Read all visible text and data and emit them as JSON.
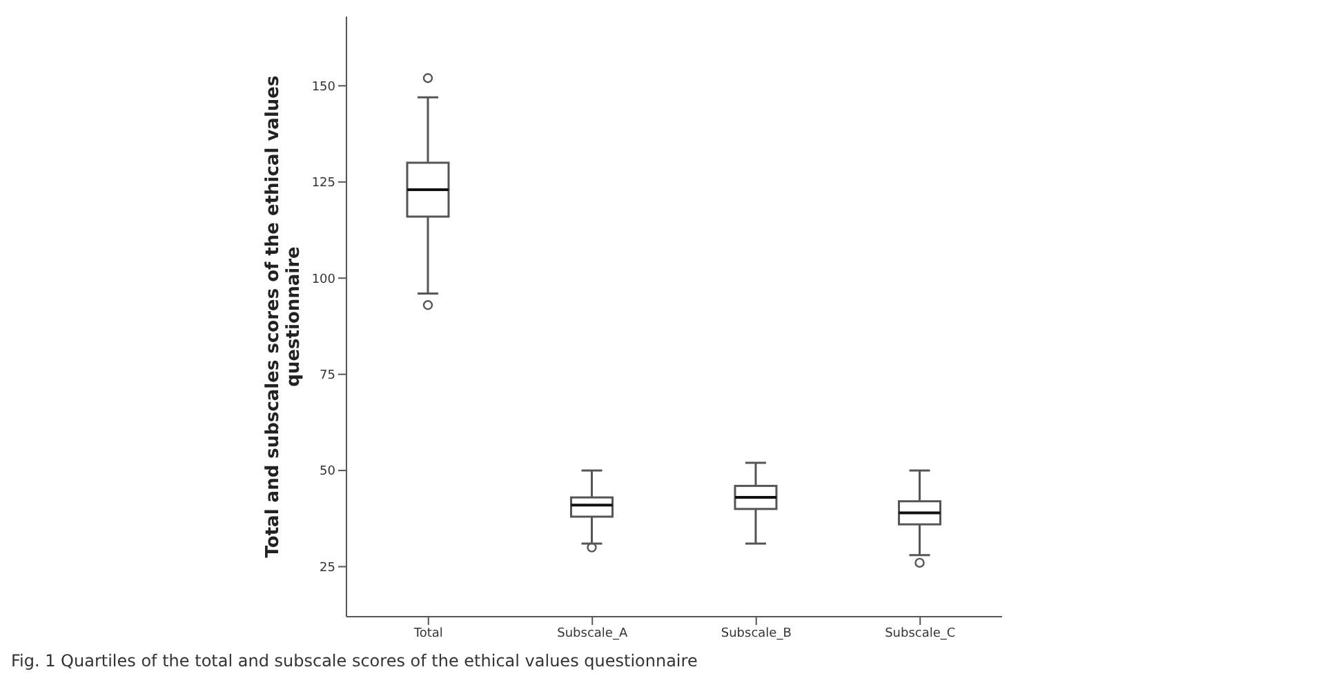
{
  "chart_data": {
    "type": "box",
    "ylabel": "Total and subscales scores of the ethical values questionnaire",
    "categories": [
      "Total",
      "Subscale_A",
      "Subscale_B",
      "Subscale_C"
    ],
    "boxes": [
      {
        "low": 96,
        "q1": 116,
        "median": 123,
        "q3": 130,
        "high": 147,
        "outliers": [
          152,
          93
        ]
      },
      {
        "low": 31,
        "q1": 38,
        "median": 41,
        "q3": 43,
        "high": 50,
        "outliers": [
          30
        ]
      },
      {
        "low": 31,
        "q1": 40,
        "median": 43,
        "q3": 46,
        "high": 52
      },
      {
        "low": 28,
        "q1": 36,
        "median": 39,
        "q3": 42,
        "high": 50,
        "outliers": [
          26
        ]
      }
    ],
    "ylim": [
      12,
      168
    ],
    "yticks": [
      25,
      50,
      75,
      100,
      125,
      150
    ],
    "annotations": [
      "Fig. 1 Quartiles of the total and subscale scores of the ethical values questionnaire"
    ]
  }
}
